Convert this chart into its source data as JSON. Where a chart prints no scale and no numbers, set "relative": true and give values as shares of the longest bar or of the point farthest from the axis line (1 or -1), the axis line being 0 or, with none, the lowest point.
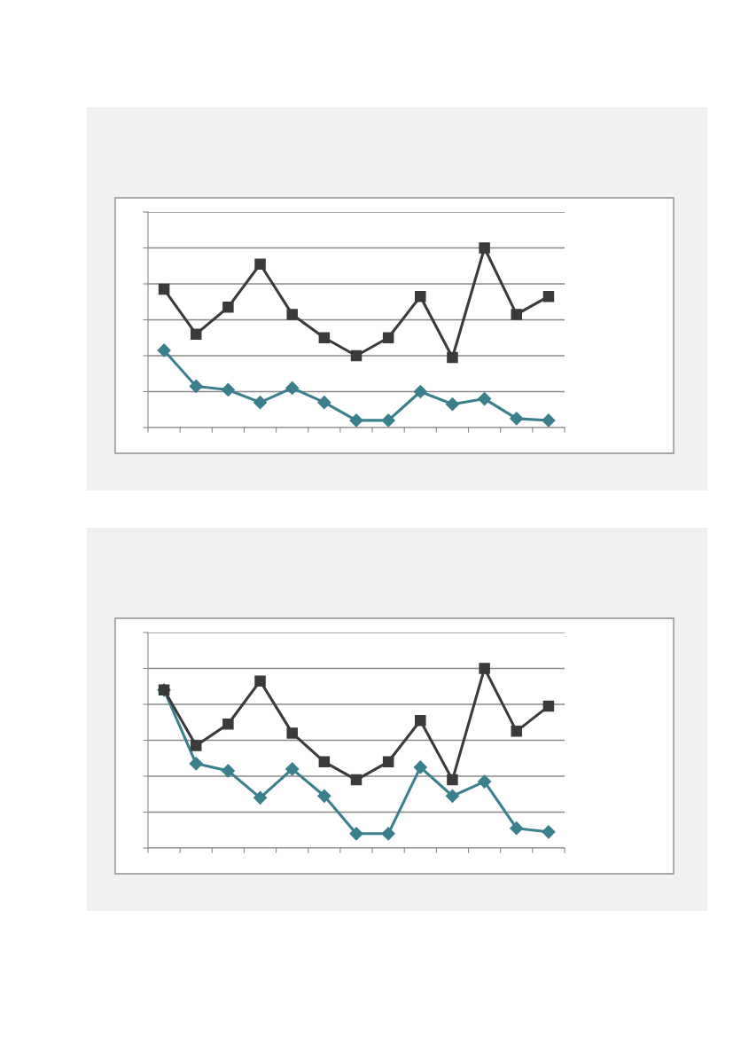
{
  "chart_data": [
    {
      "type": "line",
      "relative": true,
      "grid": "y",
      "categories": [
        null,
        null,
        null,
        null,
        null,
        null,
        null,
        null,
        null,
        null,
        null,
        null,
        null
      ],
      "series": [
        {
          "color": "#3a7f8c",
          "marker": "diamond",
          "values": [
            0.43,
            0.23,
            0.21,
            0.14,
            0.22,
            0.14,
            0.04,
            0.04,
            0.2,
            0.13,
            0.16,
            0.05,
            0.04
          ]
        },
        {
          "color": "#3a3a3a",
          "marker": "square",
          "values": [
            0.77,
            0.52,
            0.67,
            0.91,
            0.63,
            0.5,
            0.4,
            0.5,
            0.73,
            0.39,
            1,
            0.63,
            0.73
          ]
        }
      ]
    },
    {
      "type": "line",
      "relative": true,
      "grid": "y",
      "categories": [
        null,
        null,
        null,
        null,
        null,
        null,
        null,
        null,
        null,
        null,
        null,
        null,
        null
      ],
      "series": [
        {
          "color": "#3a7f8c",
          "marker": "diamond",
          "values": [
            0.88,
            0.47,
            0.43,
            0.28,
            0.44,
            0.29,
            0.08,
            0.08,
            0.45,
            0.29,
            0.37,
            0.11,
            0.09
          ]
        },
        {
          "color": "#3a3a3a",
          "marker": "square",
          "values": [
            0.88,
            0.57,
            0.69,
            0.93,
            0.64,
            0.48,
            0.38,
            0.48,
            0.71,
            0.38,
            1,
            0.65,
            0.79
          ]
        }
      ]
    }
  ]
}
